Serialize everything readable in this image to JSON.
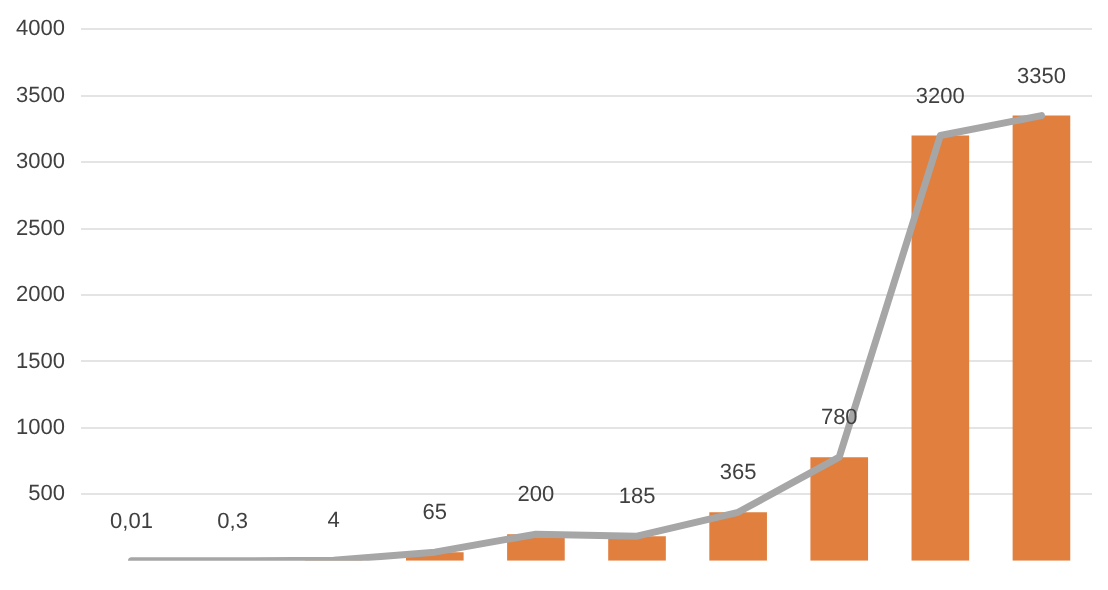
{
  "chart_data": {
    "type": "bar",
    "categories": [
      null,
      null,
      null,
      null,
      null,
      null,
      null,
      null,
      null,
      null
    ],
    "series": [
      {
        "color": "#e07f3e",
        "values": [
          0.01,
          0.3,
          4,
          65,
          200,
          185,
          365,
          780,
          3200,
          3350
        ],
        "value_labels": [
          "0,01",
          "0,3",
          "4",
          "65",
          "200",
          "185",
          "365",
          "780",
          "3200",
          "3350"
        ]
      },
      {
        "type": "line",
        "color": "#a6a6a6",
        "values": [
          0.01,
          0.3,
          4,
          65,
          200,
          185,
          365,
          780,
          3200,
          3350
        ]
      }
    ],
    "ylim": [
      0,
      4000
    ],
    "yticks": [
      500,
      1000,
      1500,
      2000,
      2500,
      3000,
      3500,
      4000
    ],
    "grid": "y",
    "marker": "none",
    "legend": false
  }
}
